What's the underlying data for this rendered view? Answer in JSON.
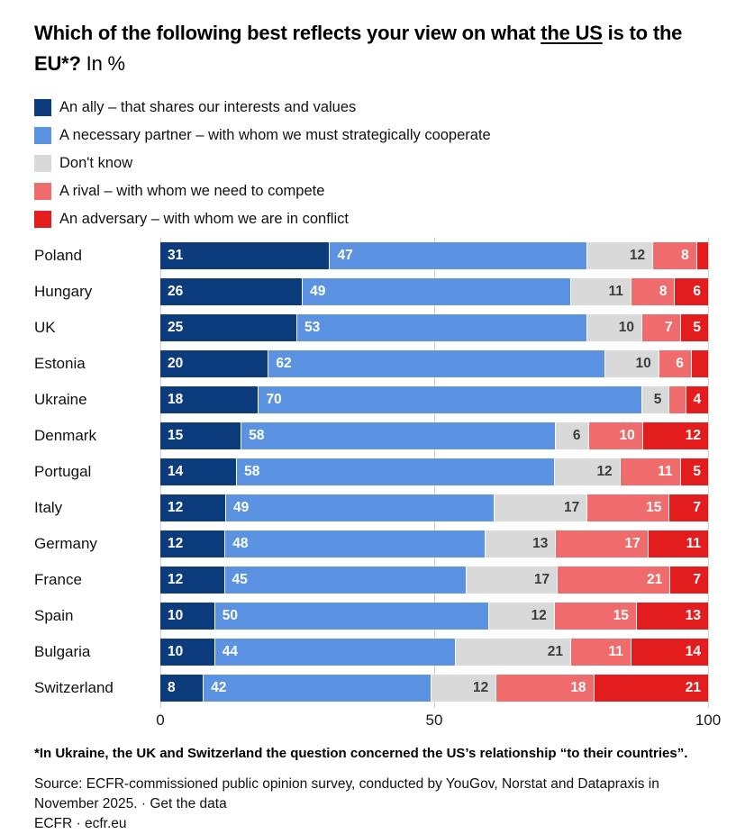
{
  "title": {
    "part1": "Which of the following best reflects your view on what ",
    "underlined": "the US",
    "part2": " is to the EU*?",
    "suffix": " In %"
  },
  "chart_data": {
    "type": "bar",
    "orientation": "horizontal",
    "stacked": true,
    "unit": "%",
    "title": "Which of the following best reflects your view on what the US is to the EU*? In %",
    "categories": [
      "Poland",
      "Hungary",
      "UK",
      "Estonia",
      "Ukraine",
      "Denmark",
      "Portugal",
      "Italy",
      "Germany",
      "France",
      "Spain",
      "Bulgaria",
      "Switzerland"
    ],
    "series": [
      {
        "key": "ally",
        "name": "An ally – that shares our interests and values",
        "color": "#0d3c7c",
        "label_color": "#ffffff",
        "label_align": "left",
        "values": [
          31,
          26,
          25,
          20,
          18,
          15,
          14,
          12,
          12,
          12,
          10,
          10,
          8
        ]
      },
      {
        "key": "necessary-partner",
        "name": "A necessary partner – with whom we must strategically cooperate",
        "color": "#5b93e2",
        "label_color": "#ffffff",
        "label_align": "left",
        "values": [
          47,
          49,
          53,
          62,
          70,
          58,
          58,
          49,
          48,
          45,
          50,
          44,
          42
        ]
      },
      {
        "key": "dont-know",
        "name": "Don't know",
        "color": "#d9d9d9",
        "label_color": "#3d3d3d",
        "label_align": "right",
        "values": [
          12,
          11,
          10,
          10,
          5,
          6,
          12,
          17,
          13,
          17,
          12,
          21,
          12
        ]
      },
      {
        "key": "rival",
        "name": "A rival – with whom we need to compete",
        "color": "#f06b6b",
        "label_color": "#ffffff",
        "label_align": "right",
        "values": [
          8,
          8,
          7,
          6,
          3,
          10,
          11,
          15,
          17,
          21,
          15,
          11,
          18
        ]
      },
      {
        "key": "adversary",
        "name": "An adversary – with whom we are in conflict",
        "color": "#e31d1d",
        "label_color": "#ffffff",
        "label_align": "right",
        "values": [
          2,
          6,
          5,
          3,
          4,
          12,
          5,
          7,
          11,
          7,
          13,
          14,
          21
        ]
      }
    ],
    "x_axis": {
      "ticks": [
        0,
        50,
        100
      ],
      "max": 100,
      "tick_labels": [
        "0",
        "50",
        "100"
      ]
    },
    "label_min_value_to_show": 4,
    "gridlines": true,
    "legend_position": "top"
  },
  "footnotes": {
    "asterisk_note": "*In Ukraine, the UK and Switzerland the question concerned the US’s relationship “to their countries”.",
    "source_prefix": "Source: ECFR-commissioned public opinion survey, conducted by YouGov, Norstat and Datapraxis in November 2025. · ",
    "get_data_label": "Get the data",
    "credit_prefix": "ECFR · ",
    "credit_link": "ecfr.eu"
  }
}
